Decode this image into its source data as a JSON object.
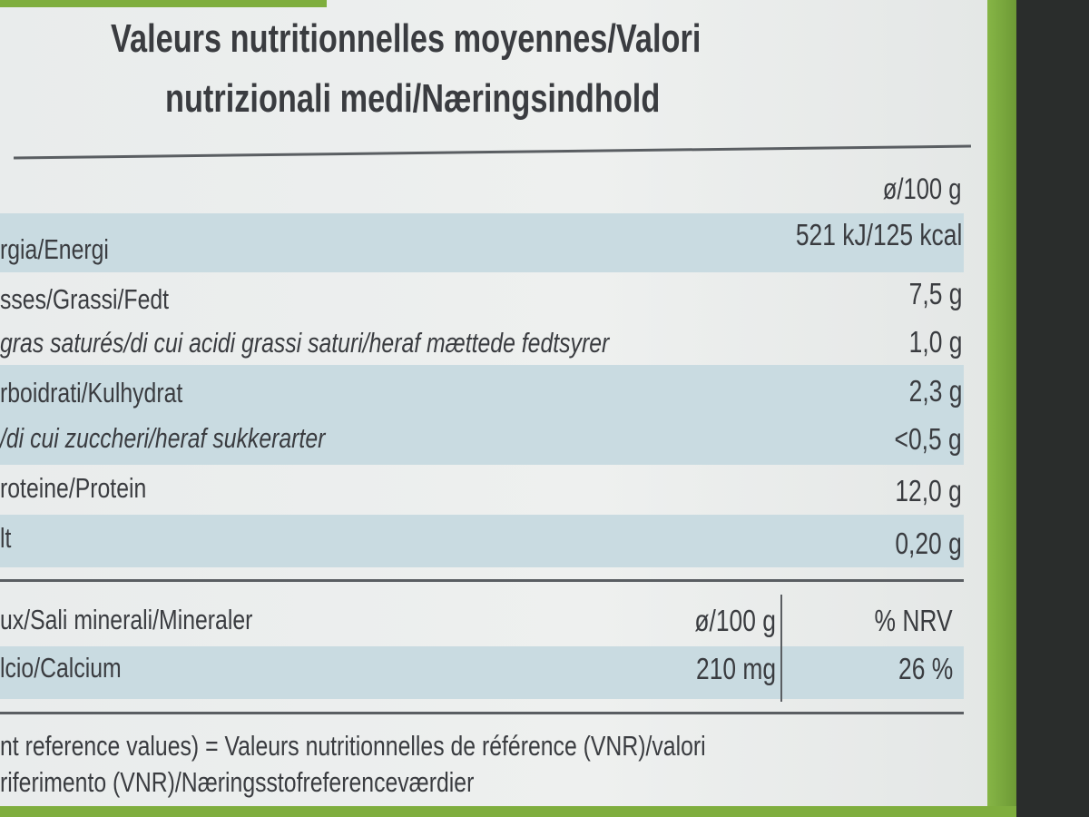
{
  "header": {
    "title_lines": [
      "Valeurs nutritionnelles moyennes/Valori",
      "nutrizionali medi/Næringsindhold"
    ]
  },
  "table": {
    "unit_header": "ø/100 g",
    "rows": [
      [
        "rgia/Energi",
        "521 kJ/125 kcal"
      ],
      [
        "sses/Grassi/Fedt",
        "7,5 g"
      ],
      [
        "gras saturés/di cui acidi grassi saturi/heraf mættede fedtsyrer",
        "1,0 g"
      ],
      [
        "rboidrati/Kulhydrat",
        "2,3 g"
      ],
      [
        "/di cui zuccheri/heraf sukkerarter",
        "<0,5 g"
      ],
      [
        "roteine/Protein",
        "12,0 g"
      ],
      [
        "lt",
        "0,20 g"
      ]
    ]
  },
  "minerals": {
    "header": [
      "ux/Sali minerali/Mineraler",
      "ø/100 g",
      "% NRV"
    ],
    "rows": [
      [
        "lcio/Calcium",
        "210 mg",
        "26 %"
      ]
    ]
  },
  "footer": {
    "lines": [
      "nt reference values) = Valeurs nutritionnelles de référence (VNR)/valori",
      "riferimento (VNR)/Næringsstofreferenceværdier"
    ]
  }
}
